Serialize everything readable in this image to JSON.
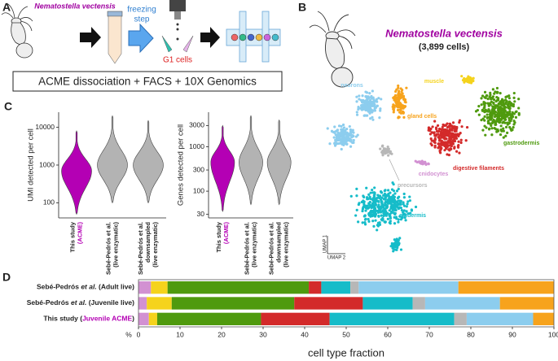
{
  "panel_labels": [
    "A",
    "B",
    "C",
    "D"
  ],
  "panel_a": {
    "species": "Nematostella vectensis",
    "step": [
      "freezing",
      "step"
    ],
    "cells": "G1 cells",
    "method": "ACME dissociation + FACS + 10X Genomics"
  },
  "panel_b": {
    "title": "Nematostella vectensis",
    "subtitle": "(3,899 cells)",
    "x_label": "UMAP 1",
    "y_label": "UMAP 2"
  },
  "chart_data": [
    {
      "type": "violin",
      "y_label": "UMI detected per cell",
      "log": true,
      "ylim": [
        40,
        25000
      ],
      "yticks": [
        100,
        1000,
        10000
      ],
      "categories": [
        [
          "This study",
          "(ACME)"
        ],
        [
          "Sebé-Pedrós et al.",
          "(live enzymatic)"
        ],
        [
          "Sebé-Pedrós et al.",
          "downsampled",
          "(live enzymatic)"
        ]
      ],
      "colors": [
        "#b400b4",
        "#b3b3b3",
        "#b3b3b3"
      ],
      "min": [
        50,
        100,
        100
      ],
      "median": [
        700,
        1000,
        1000
      ],
      "max": [
        8000,
        20000,
        15000
      ]
    },
    {
      "type": "violin",
      "y_label": "Genes detected per cell",
      "log": true,
      "ylim": [
        25,
        6000
      ],
      "yticks": [
        30,
        100,
        300,
        1000,
        3000
      ],
      "categories": [
        [
          "This study",
          "(ACME)"
        ],
        [
          "Sebé-Pedrós et al.",
          "(live enzymatic)"
        ],
        [
          "Sebé-Pedrós et al.",
          "downsampled",
          "(live enzymatic)"
        ]
      ],
      "colors": [
        "#b400b4",
        "#b3b3b3",
        "#b3b3b3"
      ],
      "min": [
        35,
        50,
        50
      ],
      "median": [
        450,
        450,
        450
      ],
      "max": [
        3000,
        5000,
        4000
      ]
    },
    {
      "type": "stacked-bar",
      "x_label": "cell type fraction",
      "x_unit": "%",
      "xlim": [
        0,
        100
      ],
      "xticks": [
        0,
        10,
        20,
        30,
        40,
        50,
        60,
        70,
        80,
        90,
        100
      ],
      "categories": [
        [
          "Sebé-Pedrós ",
          "et al.",
          " (",
          "Adult live",
          ")"
        ],
        [
          "Sebé-Pedrós ",
          "et al.",
          " (",
          "Juvenile live",
          ")"
        ],
        [
          "This study (",
          "Juvenile ACME",
          ")"
        ]
      ],
      "series": [
        {
          "name": "cnidocytes",
          "color": "#d291d2",
          "values": [
            3,
            2,
            2.5
          ]
        },
        {
          "name": "muscle",
          "color": "#f5d31c",
          "values": [
            4,
            6,
            2
          ]
        },
        {
          "name": "gastrodermis",
          "color": "#4f9a0e",
          "values": [
            34,
            29.5,
            25
          ]
        },
        {
          "name": "digestive filaments",
          "color": "#d32a2a",
          "values": [
            3,
            16.5,
            16.5
          ]
        },
        {
          "name": "epidermis",
          "color": "#16bcc9",
          "values": [
            7,
            12,
            30
          ]
        },
        {
          "name": "precursors",
          "color": "#b7b7b7",
          "values": [
            2,
            3,
            3
          ]
        },
        {
          "name": "neurons",
          "color": "#8ccdee",
          "values": [
            24,
            18,
            16
          ]
        },
        {
          "name": "gland cells",
          "color": "#f7a31c",
          "values": [
            23,
            13,
            5
          ]
        }
      ]
    }
  ]
}
